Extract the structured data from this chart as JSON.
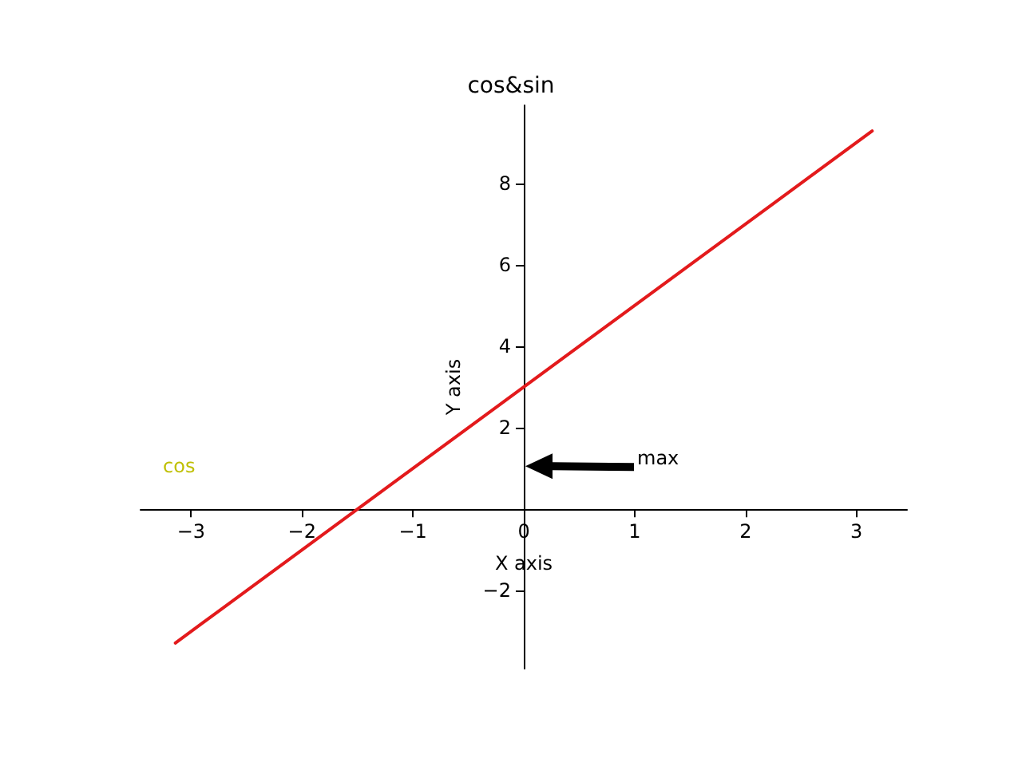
{
  "chart_data": {
    "type": "line",
    "title": "cos&sin",
    "xlabel": "X axis",
    "ylabel": "Y axis",
    "x": [
      -3.14159,
      3.14159
    ],
    "series": [
      {
        "color": "#e31a1c",
        "values": [
          -3.28,
          9.28
        ]
      }
    ],
    "xlim": [
      -3.456,
      3.456
    ],
    "ylim": [
      -3.91,
      9.91
    ],
    "xticks": [
      -3,
      -2,
      -1,
      0,
      1,
      2,
      3
    ],
    "yticks": [
      -2,
      {
        "value": 0,
        "label": null
      },
      2,
      4,
      6,
      8
    ],
    "marker": "none",
    "line_style": "solid",
    "annotations": [
      "cos",
      "max"
    ]
  }
}
